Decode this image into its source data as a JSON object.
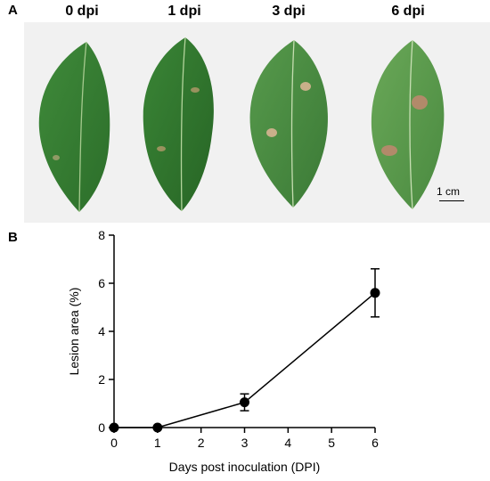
{
  "panel_a": {
    "letter": "A",
    "leaves": [
      {
        "label": "0 dpi"
      },
      {
        "label": "1 dpi"
      },
      {
        "label": "3 dpi"
      },
      {
        "label": "6 dpi"
      }
    ],
    "scale_bar_label": "1 cm"
  },
  "panel_b": {
    "letter": "B"
  },
  "chart_data": {
    "type": "line",
    "xlabel": "Days post inoculation (DPI)",
    "ylabel": "Lesion area (%)",
    "xlim": [
      0,
      6
    ],
    "ylim": [
      0,
      8
    ],
    "xticks": [
      0,
      1,
      2,
      3,
      4,
      5,
      6
    ],
    "yticks": [
      0,
      2,
      4,
      6,
      8
    ],
    "grid": false,
    "series": [
      {
        "x": [
          0,
          1,
          3,
          6
        ],
        "y": [
          0,
          0,
          1.05,
          5.6
        ],
        "error": [
          0,
          0,
          0.35,
          1.0
        ],
        "color": "#000000"
      }
    ]
  }
}
